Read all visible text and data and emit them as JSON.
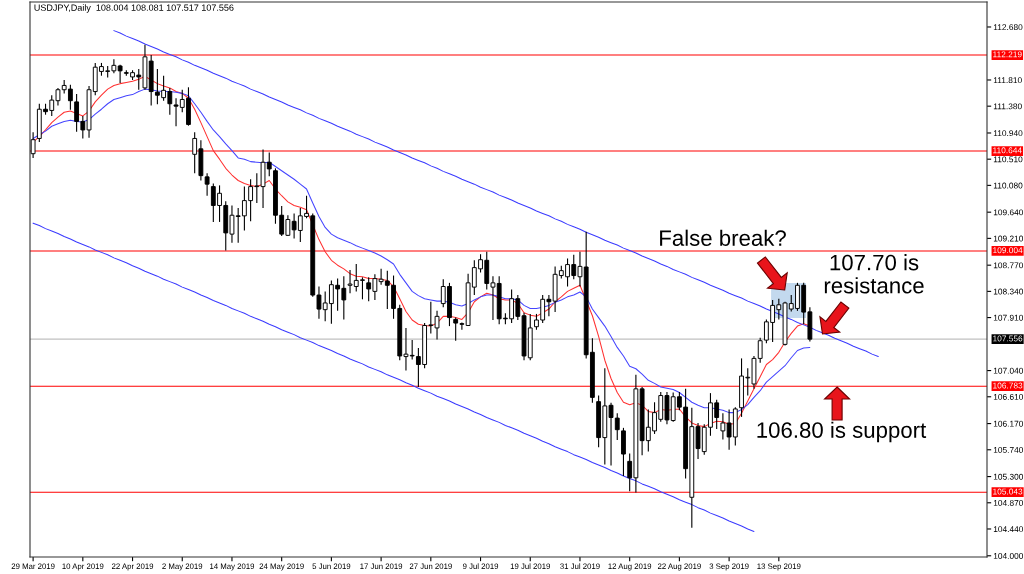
{
  "chart_data": {
    "type": "candlestick",
    "title": "USDJPY,Daily  108.004 108.081 107.517 107.556",
    "categories": [
      "29 Mar 2019",
      null,
      null,
      null,
      null,
      null,
      null,
      null,
      "10 Apr 2019",
      null,
      null,
      null,
      null,
      null,
      null,
      null,
      "22 Apr 2019",
      null,
      null,
      null,
      null,
      null,
      null,
      null,
      "2 May 2019",
      null,
      null,
      null,
      null,
      null,
      null,
      null,
      "14 May 2019",
      null,
      null,
      null,
      null,
      null,
      null,
      null,
      "24 May 2019",
      null,
      null,
      null,
      null,
      null,
      null,
      null,
      "5 Jun 2019",
      null,
      null,
      null,
      null,
      null,
      null,
      null,
      "17 Jun 2019",
      null,
      null,
      null,
      null,
      null,
      null,
      null,
      "27 Jun 2019",
      null,
      null,
      null,
      null,
      null,
      null,
      null,
      "9 Jul 2019",
      null,
      null,
      null,
      null,
      null,
      null,
      null,
      "19 Jul 2019",
      null,
      null,
      null,
      null,
      null,
      null,
      null,
      "31 Jul 2019",
      null,
      null,
      null,
      null,
      null,
      null,
      null,
      "12 Aug 2019",
      null,
      null,
      null,
      null,
      null,
      null,
      null,
      "22 Aug 2019",
      null,
      null,
      null,
      null,
      null,
      null,
      null,
      "3 Sep 2019",
      null,
      null,
      null,
      null,
      null,
      null,
      null,
      "13 Sep 2019",
      null,
      null,
      null,
      null,
      null,
      null,
      null,
      null,
      null,
      null,
      null,
      null,
      null,
      null,
      null,
      null,
      null,
      null,
      null,
      null,
      null,
      null,
      null,
      null,
      null,
      null,
      null,
      null,
      null,
      null,
      null,
      null,
      null
    ],
    "ohlc": [
      [
        110.6,
        110.95,
        110.53,
        110.83
      ],
      [
        110.85,
        111.42,
        110.79,
        111.33
      ],
      [
        111.33,
        111.42,
        111.24,
        111.29
      ],
      [
        111.31,
        111.56,
        111.22,
        111.48
      ],
      [
        111.47,
        111.68,
        111.39,
        111.65
      ],
      [
        111.65,
        111.81,
        111.59,
        111.72
      ],
      [
        111.66,
        111.73,
        111.32,
        111.47
      ],
      [
        111.45,
        111.58,
        110.96,
        111.13
      ],
      [
        111.13,
        111.22,
        110.85,
        110.99
      ],
      [
        110.99,
        111.71,
        110.86,
        111.65
      ],
      [
        111.62,
        112.09,
        111.56,
        112.02
      ],
      [
        111.95,
        112.09,
        111.88,
        112.03
      ],
      [
        111.95,
        112.04,
        111.85,
        111.96
      ],
      [
        111.96,
        112.15,
        111.92,
        112.05
      ],
      [
        112.04,
        112.06,
        111.76,
        111.96
      ],
      [
        111.93,
        111.97,
        111.88,
        111.92
      ],
      [
        111.86,
        111.97,
        111.81,
        111.93
      ],
      [
        111.89,
        111.99,
        111.65,
        111.86
      ],
      [
        111.68,
        112.39,
        111.65,
        112.19
      ],
      [
        112.12,
        112.22,
        111.39,
        111.62
      ],
      [
        111.61,
        111.99,
        111.41,
        111.56
      ],
      [
        111.52,
        111.88,
        111.47,
        111.64
      ],
      [
        111.62,
        111.68,
        111.24,
        111.42
      ],
      [
        111.4,
        111.51,
        111.05,
        111.38
      ],
      [
        111.36,
        111.65,
        111.28,
        111.49
      ],
      [
        111.51,
        111.69,
        111.06,
        111.08
      ],
      [
        110.59,
        110.95,
        110.28,
        110.85
      ],
      [
        110.68,
        110.82,
        110.16,
        110.24
      ],
      [
        110.22,
        110.28,
        109.91,
        110.1
      ],
      [
        110.06,
        110.11,
        109.48,
        109.75
      ],
      [
        109.75,
        110.08,
        109.48,
        109.95
      ],
      [
        109.75,
        109.82,
        109.01,
        109.3
      ],
      [
        109.28,
        109.75,
        109.14,
        109.59
      ],
      [
        109.58,
        109.71,
        109.14,
        109.57
      ],
      [
        109.58,
        110.06,
        109.34,
        109.83
      ],
      [
        109.83,
        110.18,
        109.49,
        110.06
      ],
      [
        110.06,
        110.28,
        109.79,
        110.07
      ],
      [
        110.06,
        110.67,
        109.71,
        110.46
      ],
      [
        110.46,
        110.62,
        110.23,
        110.35
      ],
      [
        110.32,
        110.36,
        109.45,
        109.59
      ],
      [
        109.59,
        109.74,
        109.25,
        109.28
      ],
      [
        109.26,
        109.59,
        109.25,
        109.52
      ],
      [
        109.49,
        109.62,
        109.21,
        109.35
      ],
      [
        109.34,
        109.71,
        109.15,
        109.58
      ],
      [
        109.57,
        109.91,
        109.54,
        109.62
      ],
      [
        109.58,
        109.62,
        108.25,
        108.28
      ],
      [
        108.28,
        108.42,
        107.89,
        108.05
      ],
      [
        108.04,
        108.34,
        107.85,
        108.15
      ],
      [
        108.14,
        108.52,
        107.81,
        108.45
      ],
      [
        108.44,
        108.55,
        108.02,
        108.38
      ],
      [
        108.39,
        108.59,
        107.88,
        108.2
      ],
      [
        108.44,
        108.69,
        108.31,
        108.46
      ],
      [
        108.42,
        108.79,
        108.34,
        108.52
      ],
      [
        108.52,
        108.57,
        108.21,
        108.53
      ],
      [
        108.48,
        108.57,
        108.18,
        108.38
      ],
      [
        108.34,
        108.62,
        108.2,
        108.55
      ],
      [
        108.5,
        108.71,
        108.45,
        108.54
      ],
      [
        108.51,
        108.68,
        108.05,
        108.44
      ],
      [
        108.44,
        108.6,
        107.89,
        108.06
      ],
      [
        108.06,
        108.12,
        107.21,
        107.28
      ],
      [
        107.27,
        107.74,
        107.04,
        107.31
      ],
      [
        107.29,
        107.54,
        107.22,
        107.28
      ],
      [
        107.27,
        107.41,
        106.77,
        107.14
      ],
      [
        107.14,
        107.82,
        107.08,
        107.78
      ],
      [
        107.78,
        108.17,
        107.65,
        107.79
      ],
      [
        107.74,
        108.02,
        107.55,
        107.93
      ],
      [
        108.14,
        108.54,
        108.08,
        108.42
      ],
      [
        108.42,
        108.48,
        107.77,
        107.91
      ],
      [
        107.88,
        107.91,
        107.53,
        107.82
      ],
      [
        107.81,
        107.83,
        107.71,
        107.8
      ],
      [
        107.78,
        108.63,
        107.77,
        108.48
      ],
      [
        108.41,
        108.85,
        108.28,
        108.73
      ],
      [
        108.71,
        108.95,
        108.65,
        108.86
      ],
      [
        108.85,
        108.99,
        108.37,
        108.47
      ],
      [
        108.41,
        108.59,
        107.87,
        108.48
      ],
      [
        108.47,
        108.59,
        107.8,
        107.89
      ],
      [
        107.9,
        107.98,
        107.8,
        107.89
      ],
      [
        107.89,
        108.37,
        107.82,
        108.22
      ],
      [
        108.22,
        108.28,
        107.87,
        107.93
      ],
      [
        107.94,
        107.99,
        107.21,
        107.28
      ],
      [
        107.25,
        107.97,
        107.21,
        107.74
      ],
      [
        107.76,
        107.97,
        107.71,
        107.87
      ],
      [
        107.87,
        108.28,
        107.82,
        108.21
      ],
      [
        108.21,
        108.28,
        107.93,
        108.17
      ],
      [
        108.18,
        108.75,
        108.0,
        108.62
      ],
      [
        108.6,
        108.76,
        108.55,
        108.68
      ],
      [
        108.58,
        108.88,
        108.42,
        108.78
      ],
      [
        108.78,
        108.94,
        108.54,
        108.6
      ],
      [
        108.58,
        108.99,
        108.42,
        108.75
      ],
      [
        108.74,
        109.32,
        107.24,
        107.3
      ],
      [
        107.34,
        107.57,
        106.51,
        106.6
      ],
      [
        106.53,
        106.63,
        105.78,
        105.94
      ],
      [
        105.94,
        107.08,
        105.5,
        106.46
      ],
      [
        106.47,
        106.51,
        105.48,
        106.27
      ],
      [
        106.26,
        106.34,
        105.9,
        106.07
      ],
      [
        106.05,
        106.1,
        105.31,
        105.67
      ],
      [
        105.55,
        105.68,
        105.06,
        105.28
      ],
      [
        105.28,
        106.97,
        105.04,
        106.74
      ],
      [
        106.74,
        106.77,
        105.65,
        105.89
      ],
      [
        105.89,
        106.4,
        105.71,
        106.11
      ],
      [
        106.05,
        106.52,
        106.0,
        106.35
      ],
      [
        106.24,
        106.69,
        106.2,
        106.63
      ],
      [
        106.63,
        106.69,
        106.16,
        106.23
      ],
      [
        106.22,
        106.68,
        106.2,
        106.61
      ],
      [
        106.61,
        106.69,
        106.39,
        106.44
      ],
      [
        106.44,
        106.74,
        105.27,
        105.43
      ],
      [
        104.96,
        106.43,
        104.46,
        106.12
      ],
      [
        106.12,
        106.18,
        105.59,
        105.76
      ],
      [
        105.71,
        106.16,
        105.66,
        106.11
      ],
      [
        106.11,
        106.67,
        105.97,
        106.51
      ],
      [
        106.51,
        106.56,
        106.08,
        106.27
      ],
      [
        106.05,
        106.34,
        105.91,
        106.18
      ],
      [
        106.18,
        106.4,
        105.74,
        105.95
      ],
      [
        105.95,
        106.44,
        105.81,
        106.41
      ],
      [
        106.43,
        107.24,
        106.28,
        106.95
      ],
      [
        106.92,
        107.08,
        106.63,
        106.93
      ],
      [
        106.82,
        107.28,
        106.74,
        107.24
      ],
      [
        107.24,
        107.58,
        107.17,
        107.53
      ],
      [
        107.54,
        107.88,
        107.49,
        107.84
      ],
      [
        107.83,
        108.2,
        107.51,
        108.11
      ],
      [
        108.04,
        108.22,
        107.88,
        108.12
      ],
      [
        107.47,
        108.17,
        107.45,
        108.15
      ],
      [
        108.05,
        108.28,
        108.01,
        108.14
      ],
      [
        108.06,
        108.48,
        108.02,
        108.44
      ],
      [
        108.44,
        108.48,
        107.8,
        108.0
      ],
      [
        108.004,
        108.081,
        107.517,
        107.556
      ],
      null,
      null,
      null,
      null,
      null,
      null,
      null,
      null,
      null,
      null,
      null,
      null,
      null,
      null,
      null,
      null,
      null,
      null,
      null,
      null,
      null,
      null,
      null,
      null,
      null,
      null,
      null,
      null
    ],
    "series": [
      {
        "type": "line",
        "color": "#ff3030",
        "values": [
          110.79,
          110.88,
          110.99,
          111.11,
          111.2,
          111.28,
          111.3,
          111.26,
          111.22,
          111.3,
          111.45,
          111.56,
          111.66,
          111.72,
          111.75,
          111.77,
          111.79,
          111.82,
          111.87,
          111.81,
          111.75,
          111.71,
          111.68,
          111.62,
          111.59,
          111.51,
          111.33,
          111.11,
          110.88,
          110.65,
          110.51,
          110.36,
          110.25,
          110.16,
          110.11,
          110.08,
          110.06,
          110.1,
          110.16,
          110.02,
          109.91,
          109.81,
          109.75,
          109.72,
          109.68,
          null,
          109.19,
          108.99,
          108.85,
          108.77,
          108.71,
          108.63,
          108.59,
          108.58,
          108.55,
          108.55,
          108.54,
          108.52,
          108.42,
          108.22,
          108.01,
          107.87,
          107.8,
          107.78,
          107.77,
          107.82,
          107.93,
          107.93,
          107.91,
          107.88,
          107.99,
          108.17,
          108.25,
          108.31,
          108.28,
          108.22,
          108.2,
          108.2,
          108.14,
          107.99,
          107.95,
          107.93,
          107.99,
          108.05,
          108.17,
          108.25,
          108.34,
          108.39,
          108.44,
          null,
          107.94,
          107.6,
          107.21,
          106.91,
          106.68,
          106.52,
          106.48,
          106.51,
          106.47,
          106.37,
          106.35,
          106.4,
          106.39,
          106.4,
          106.41,
          106.28,
          106.18,
          106.14,
          106.12,
          106.17,
          106.21,
          106.2,
          106.16,
          106.17,
          106.34,
          106.54,
          106.74,
          106.94,
          107.14,
          107.22,
          107.34,
          107.51,
          107.65,
          107.77,
          107.81,
          107.77,
          null,
          null,
          null,
          null,
          null,
          null,
          null,
          null,
          null,
          null,
          null,
          null,
          null,
          null,
          null,
          null,
          null,
          null,
          null,
          null,
          null,
          null,
          null,
          null,
          null,
          null,
          null,
          null
        ]
      },
      {
        "type": "line",
        "color": "#4545ff",
        "values": [
          110.85,
          110.91,
          110.97,
          111.05,
          111.09,
          111.13,
          111.15,
          111.13,
          111.12,
          111.16,
          111.25,
          111.33,
          111.42,
          111.49,
          111.52,
          111.55,
          111.57,
          111.62,
          111.66,
          111.65,
          111.63,
          111.62,
          111.62,
          111.61,
          111.59,
          111.55,
          111.42,
          111.28,
          111.13,
          110.99,
          110.88,
          110.76,
          110.65,
          110.53,
          110.51,
          110.47,
          110.46,
          110.45,
          110.46,
          110.39,
          110.32,
          110.25,
          110.18,
          110.1,
          110.02,
          109.79,
          109.57,
          109.39,
          109.28,
          109.22,
          109.18,
          109.14,
          109.09,
          109.05,
          109.01,
          108.97,
          108.92,
          108.86,
          108.79,
          108.62,
          108.48,
          108.34,
          108.27,
          108.22,
          108.2,
          108.18,
          108.18,
          108.16,
          108.12,
          108.1,
          108.14,
          108.2,
          108.25,
          108.28,
          108.28,
          108.25,
          108.22,
          108.22,
          108.2,
          108.11,
          108.06,
          108.06,
          108.08,
          108.11,
          108.16,
          108.2,
          108.25,
          108.28,
          108.33,
          108.25,
          108.05,
          107.91,
          107.77,
          107.6,
          107.42,
          107.28,
          107.11,
          107.07,
          106.98,
          106.88,
          106.83,
          106.77,
          106.75,
          106.73,
          106.68,
          106.6,
          106.52,
          106.47,
          106.43,
          106.43,
          106.41,
          106.39,
          106.35,
          106.35,
          106.4,
          106.48,
          106.6,
          106.71,
          106.85,
          106.94,
          107.03,
          107.12,
          107.25,
          107.37,
          107.41,
          107.42,
          null,
          null,
          null,
          null,
          null,
          null,
          null,
          null,
          null,
          null,
          null,
          null,
          null,
          null,
          null,
          null,
          null,
          null,
          null,
          null,
          null,
          null,
          null,
          null,
          null,
          null,
          null,
          null
        ]
      },
      {
        "type": "line",
        "color": "#3a3aff",
        "values": [
          null,
          null,
          null,
          null,
          null,
          null,
          null,
          null,
          null,
          null,
          null,
          null,
          null,
          112.62,
          112.58,
          112.53,
          112.49,
          112.45,
          112.4,
          112.36,
          112.32,
          112.27,
          112.23,
          112.19,
          112.14,
          112.1,
          112.05,
          112.01,
          111.97,
          111.92,
          111.88,
          111.84,
          111.79,
          111.75,
          111.71,
          111.66,
          111.62,
          111.58,
          111.53,
          111.49,
          111.45,
          111.4,
          111.36,
          111.32,
          111.27,
          111.23,
          111.18,
          111.14,
          111.1,
          111.05,
          111.01,
          110.97,
          110.92,
          110.88,
          110.84,
          110.79,
          110.75,
          110.71,
          110.66,
          110.62,
          110.58,
          110.53,
          110.49,
          110.45,
          110.4,
          110.36,
          110.31,
          110.27,
          110.23,
          110.18,
          110.14,
          110.1,
          110.05,
          110.01,
          109.97,
          109.92,
          109.88,
          109.84,
          109.79,
          109.75,
          109.71,
          109.66,
          109.62,
          109.58,
          109.53,
          109.49,
          109.44,
          109.4,
          109.36,
          109.31,
          109.27,
          109.23,
          109.18,
          109.14,
          109.1,
          109.05,
          109.01,
          108.97,
          108.92,
          108.88,
          108.84,
          108.79,
          108.75,
          108.7,
          108.66,
          108.62,
          108.57,
          108.53,
          108.49,
          108.44,
          108.4,
          108.36,
          108.31,
          108.27,
          108.23,
          108.18,
          108.14,
          108.1,
          108.05,
          108.01,
          107.97,
          107.92,
          107.88,
          107.83,
          107.79,
          107.75,
          107.7,
          107.66,
          107.62,
          107.57,
          107.53,
          107.49,
          107.44,
          107.4,
          107.36,
          107.31,
          107.27,
          null,
          null,
          null,
          null,
          null,
          null,
          null,
          null,
          null,
          null,
          null,
          null,
          null,
          null,
          null,
          null,
          null
        ]
      },
      {
        "type": "line",
        "color": "#3a3aff",
        "values": [
          109.46,
          109.42,
          109.37,
          109.33,
          109.29,
          109.24,
          109.2,
          109.15,
          109.11,
          109.07,
          109.02,
          108.98,
          108.94,
          108.89,
          108.85,
          108.81,
          108.76,
          108.72,
          108.67,
          108.63,
          108.59,
          108.54,
          108.5,
          108.46,
          108.41,
          108.37,
          108.33,
          108.28,
          108.24,
          108.19,
          108.15,
          108.11,
          108.06,
          108.02,
          107.98,
          107.93,
          107.89,
          107.85,
          107.8,
          107.76,
          107.71,
          107.67,
          107.63,
          107.58,
          107.54,
          107.5,
          107.45,
          107.41,
          107.37,
          107.32,
          107.28,
          107.23,
          107.19,
          107.15,
          107.1,
          107.06,
          107.02,
          106.97,
          106.93,
          106.89,
          106.84,
          106.8,
          106.75,
          106.71,
          106.67,
          106.62,
          106.58,
          106.54,
          106.49,
          106.45,
          106.41,
          106.36,
          106.32,
          106.27,
          106.23,
          106.19,
          106.14,
          106.1,
          106.06,
          106.01,
          105.97,
          105.93,
          105.88,
          105.84,
          105.79,
          105.75,
          105.71,
          105.66,
          105.62,
          105.58,
          105.53,
          105.49,
          105.45,
          105.4,
          105.36,
          105.31,
          105.27,
          105.23,
          105.18,
          105.14,
          105.1,
          105.05,
          105.01,
          104.97,
          104.92,
          104.88,
          104.84,
          104.79,
          104.75,
          104.7,
          104.66,
          104.62,
          104.57,
          104.53,
          104.49,
          104.44,
          104.4,
          null,
          null,
          null,
          null,
          null,
          null,
          null,
          null,
          null,
          null,
          null,
          null,
          null,
          null,
          null,
          null,
          null,
          null,
          null,
          null,
          null,
          null,
          null,
          null,
          null,
          null,
          null,
          null,
          null,
          null,
          null,
          null,
          null,
          null,
          null,
          null,
          null
        ]
      }
    ],
    "ref_lines": [
      {
        "axis": "y",
        "value": 112.219,
        "label": "112.219",
        "color": "#ff0000"
      },
      {
        "axis": "y",
        "value": 110.644,
        "label": "110.644",
        "color": "#ff0000"
      },
      {
        "axis": "y",
        "value": 109.004,
        "label": "109.004",
        "color": "#ff0000"
      },
      {
        "axis": "y",
        "value": 107.556,
        "label": "107.556",
        "color": "#c0c0c0"
      },
      {
        "axis": "y",
        "value": 106.783,
        "label": "106.783",
        "color": "#ff0000"
      },
      {
        "axis": "y",
        "value": 105.043,
        "label": "105.043",
        "color": "#ff0000"
      }
    ],
    "annotations": [
      "False break?",
      "107.70 is\nresistance",
      "106.80 is support"
    ],
    "ylim": [
      103.98,
      113.09
    ],
    "yticks": [
      {
        "value": 112.68,
        "label": "112.680"
      },
      {
        "value": 111.81,
        "label": "111.810"
      },
      {
        "value": 111.38,
        "label": "111.380"
      },
      {
        "value": 110.94,
        "label": "110.940"
      },
      {
        "value": 110.51,
        "label": "110.510"
      },
      {
        "value": 110.08,
        "label": "110.080"
      },
      {
        "value": 109.64,
        "label": "109.640"
      },
      {
        "value": 109.21,
        "label": "109.210"
      },
      {
        "value": 108.77,
        "label": "108.770"
      },
      {
        "value": 108.34,
        "label": "108.340"
      },
      {
        "value": 107.91,
        "label": "107.910"
      },
      {
        "value": 107.04,
        "label": "107.040"
      },
      {
        "value": 106.61,
        "label": "106.610"
      },
      {
        "value": 106.17,
        "label": "106.170"
      },
      {
        "value": 105.74,
        "label": "105.740"
      },
      {
        "value": 105.3,
        "label": "105.300"
      },
      {
        "value": 104.87,
        "label": "104.870"
      },
      {
        "value": 104.44,
        "label": "104.440"
      },
      {
        "value": 104,
        "label": "104.000"
      }
    ]
  }
}
